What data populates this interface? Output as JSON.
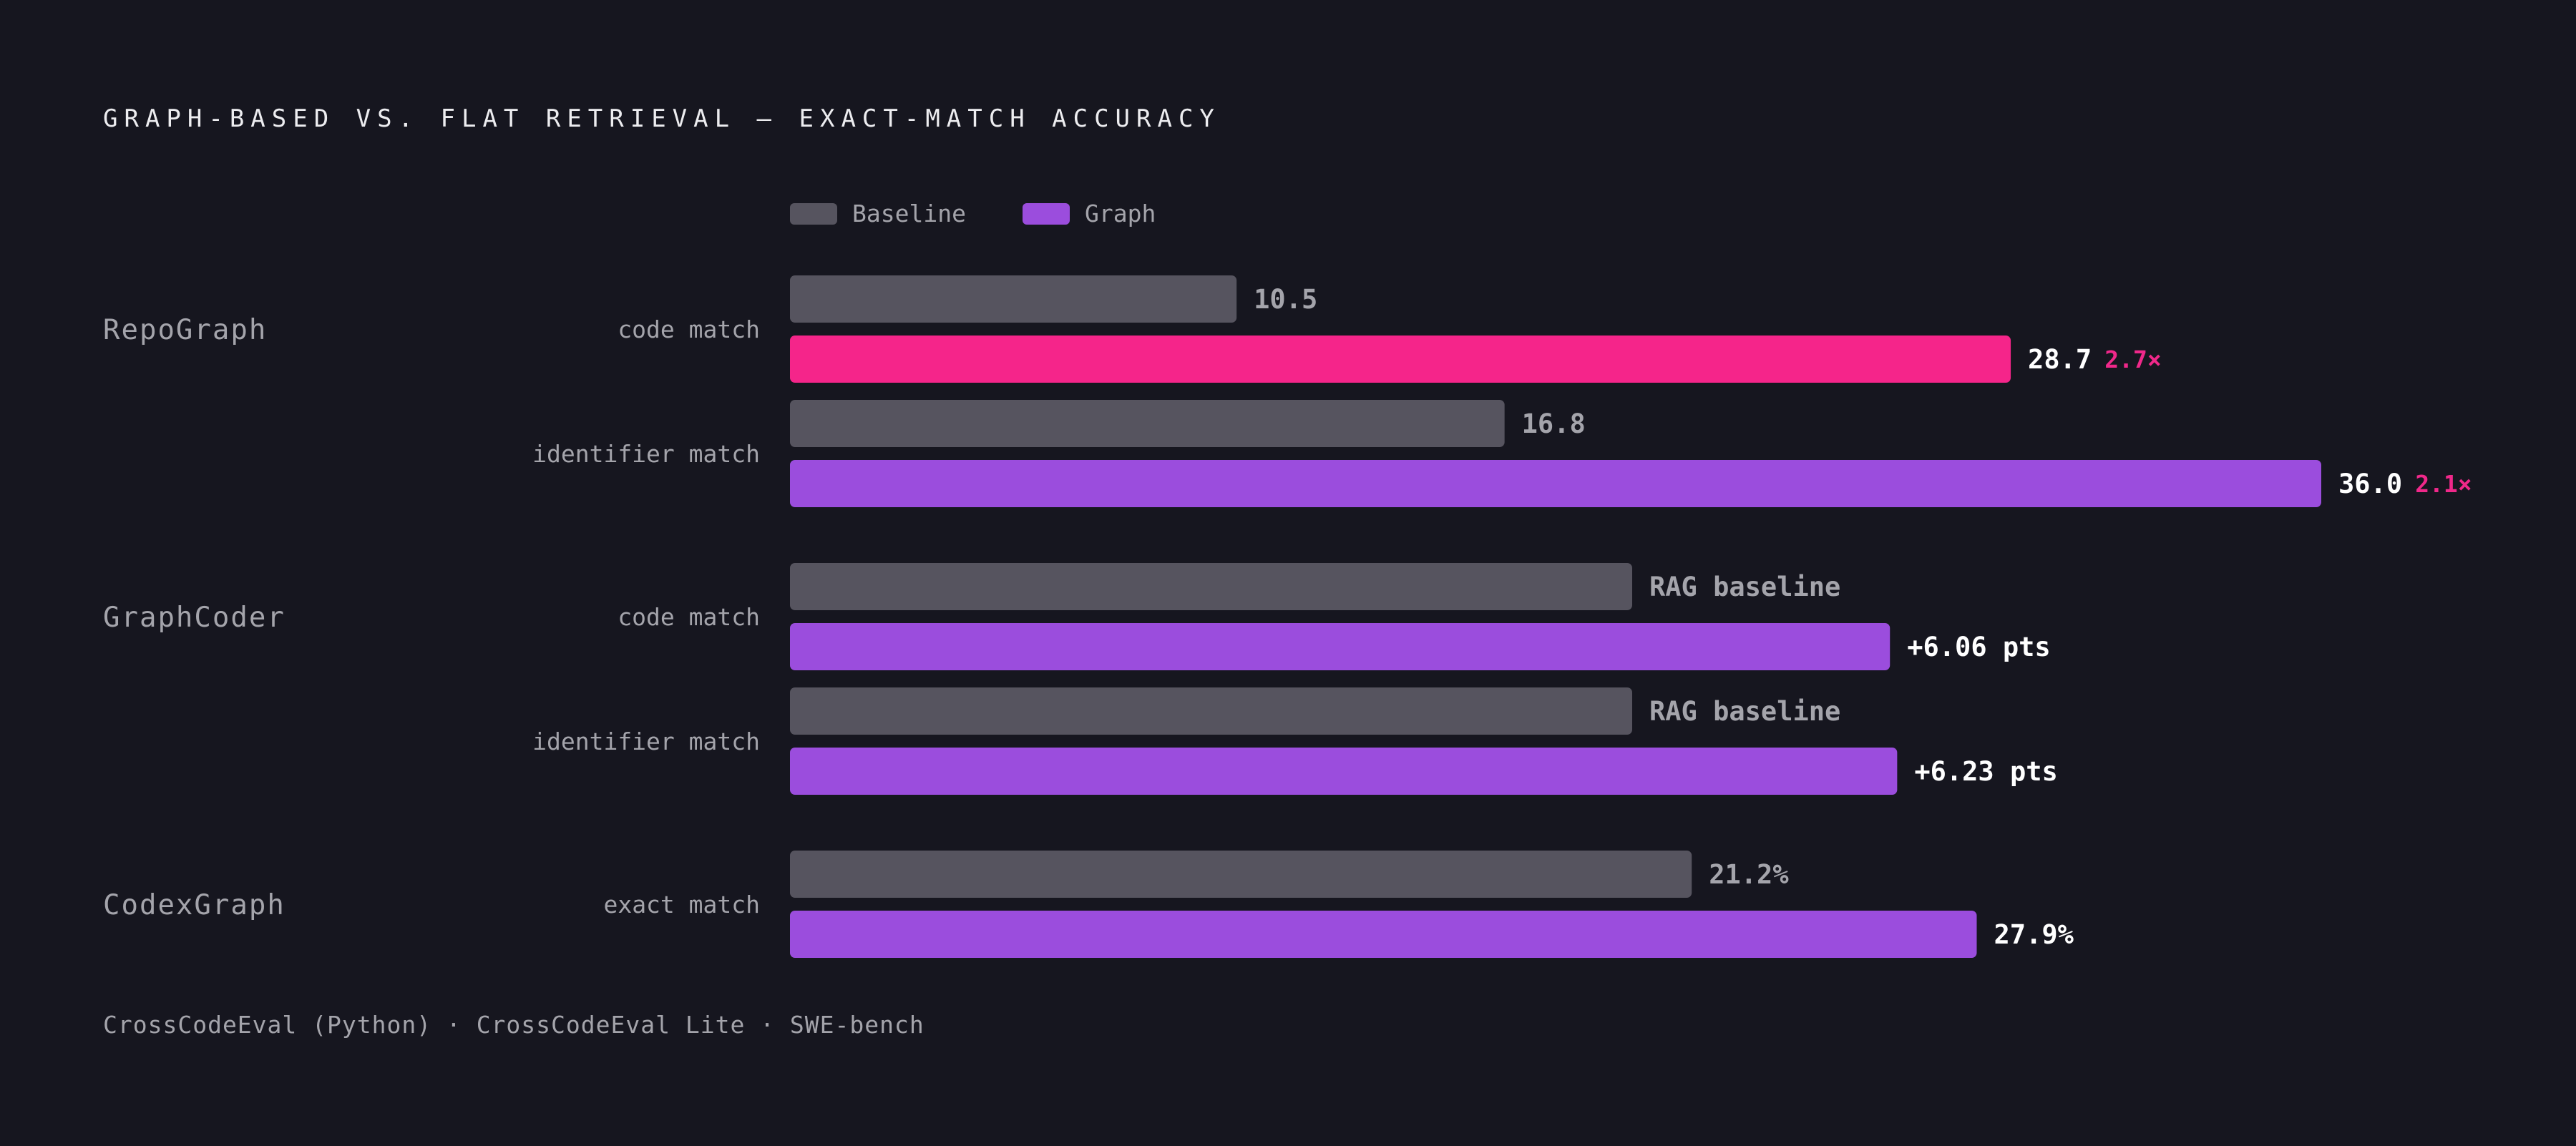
{
  "chart_data": {
    "type": "bar",
    "orientation": "horizontal",
    "title": "GRAPH-BASED VS. FLAT RETRIEVAL — EXACT-MATCH ACCURACY",
    "legend": {
      "placement": "top-left",
      "items": [
        {
          "name": "Baseline",
          "color": "#56545f"
        },
        {
          "name": "Graph",
          "color": "#9b4ddd"
        }
      ]
    },
    "groups": [
      {
        "name": "RepoGraph",
        "rows": [
          {
            "metric": "code match",
            "baseline": {
              "value": 10.5,
              "label": "10.5"
            },
            "graph": {
              "value": 28.7,
              "label": "28.7",
              "ratio": "2.7×",
              "color": "#f5258a"
            }
          },
          {
            "metric": "identifier match",
            "baseline": {
              "value": 16.8,
              "label": "16.8"
            },
            "graph": {
              "value": 36.0,
              "label": "36.0",
              "ratio": "2.1×",
              "color": "#9b4ddd"
            }
          }
        ]
      },
      {
        "name": "GraphCoder",
        "rows": [
          {
            "metric": "code match",
            "baseline": {
              "value": 19.8,
              "label": "RAG baseline"
            },
            "graph": {
              "value": 25.86,
              "label": "+6.06 pts",
              "ratio": "",
              "color": "#9b4ddd"
            }
          },
          {
            "metric": "identifier match",
            "baseline": {
              "value": 19.8,
              "label": "RAG baseline"
            },
            "graph": {
              "value": 26.03,
              "label": "+6.23 pts",
              "ratio": "",
              "color": "#9b4ddd"
            }
          }
        ]
      },
      {
        "name": "CodexGraph",
        "rows": [
          {
            "metric": "exact match",
            "baseline": {
              "value": 21.2,
              "label": "21.2%"
            },
            "graph": {
              "value": 27.9,
              "label": "27.9%",
              "ratio": "",
              "color": "#9b4ddd"
            }
          }
        ]
      }
    ],
    "xlim": [
      0,
      36.0
    ],
    "grid": false,
    "footnote": "CrossCodeEval (Python) · CrossCodeEval Lite · SWE-bench"
  }
}
